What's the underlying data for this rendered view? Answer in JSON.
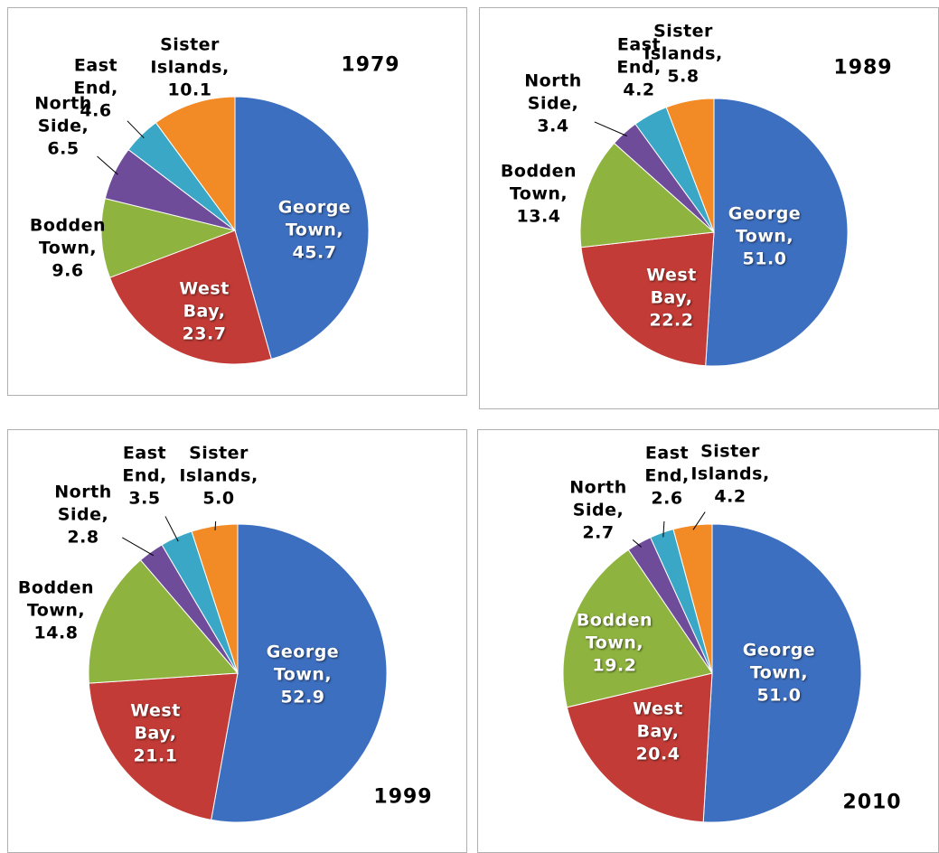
{
  "chart_data": [
    {
      "type": "pie",
      "title": "1979",
      "categories": [
        "George Town,",
        "West Bay,",
        "Bodden Town,",
        "North Side,",
        "East End,",
        "Sister Islands,"
      ],
      "values": [
        45.7,
        23.7,
        9.6,
        6.5,
        4.6,
        10.1
      ],
      "colors": [
        "#3d6fc0",
        "#c23b36",
        "#8fb33f",
        "#6e4c9a",
        "#3aa7c6",
        "#f28a26"
      ]
    },
    {
      "type": "pie",
      "title": "1989",
      "categories": [
        "George Town,",
        "West Bay,",
        "Bodden Town,",
        "North Side,",
        "East End,",
        "Sister Islands,"
      ],
      "values": [
        51.0,
        22.2,
        13.4,
        3.4,
        4.2,
        5.8
      ],
      "value_labels": [
        "51.0",
        "22.2",
        "13.4",
        "3.4",
        "4.2",
        "5.8"
      ],
      "colors": [
        "#3d6fc0",
        "#c23b36",
        "#8fb33f",
        "#6e4c9a",
        "#3aa7c6",
        "#f28a26"
      ]
    },
    {
      "type": "pie",
      "title": "1999",
      "categories": [
        "George Town,",
        "West Bay,",
        "Bodden Town,",
        "North Side,",
        "East End,",
        "Sister Islands,"
      ],
      "values": [
        52.9,
        21.1,
        14.8,
        2.8,
        3.5,
        5.0
      ],
      "value_labels": [
        "52.9",
        "21.1",
        "14.8",
        "2.8",
        "3.5",
        "5.0"
      ],
      "colors": [
        "#3d6fc0",
        "#c23b36",
        "#8fb33f",
        "#6e4c9a",
        "#3aa7c6",
        "#f28a26"
      ]
    },
    {
      "type": "pie",
      "title": "2010",
      "categories": [
        "George Town,",
        "West Bay,",
        "Bodden Town,",
        "North Side,",
        "East End,",
        "Sister Islands,"
      ],
      "values": [
        51.0,
        20.4,
        19.2,
        2.7,
        2.6,
        4.2
      ],
      "value_labels": [
        "51.0",
        "20.4",
        "19.2",
        "2.7",
        "2.6",
        "4.2"
      ],
      "colors": [
        "#3d6fc0",
        "#c23b36",
        "#8fb33f",
        "#6e4c9a",
        "#3aa7c6",
        "#f28a26"
      ]
    }
  ]
}
